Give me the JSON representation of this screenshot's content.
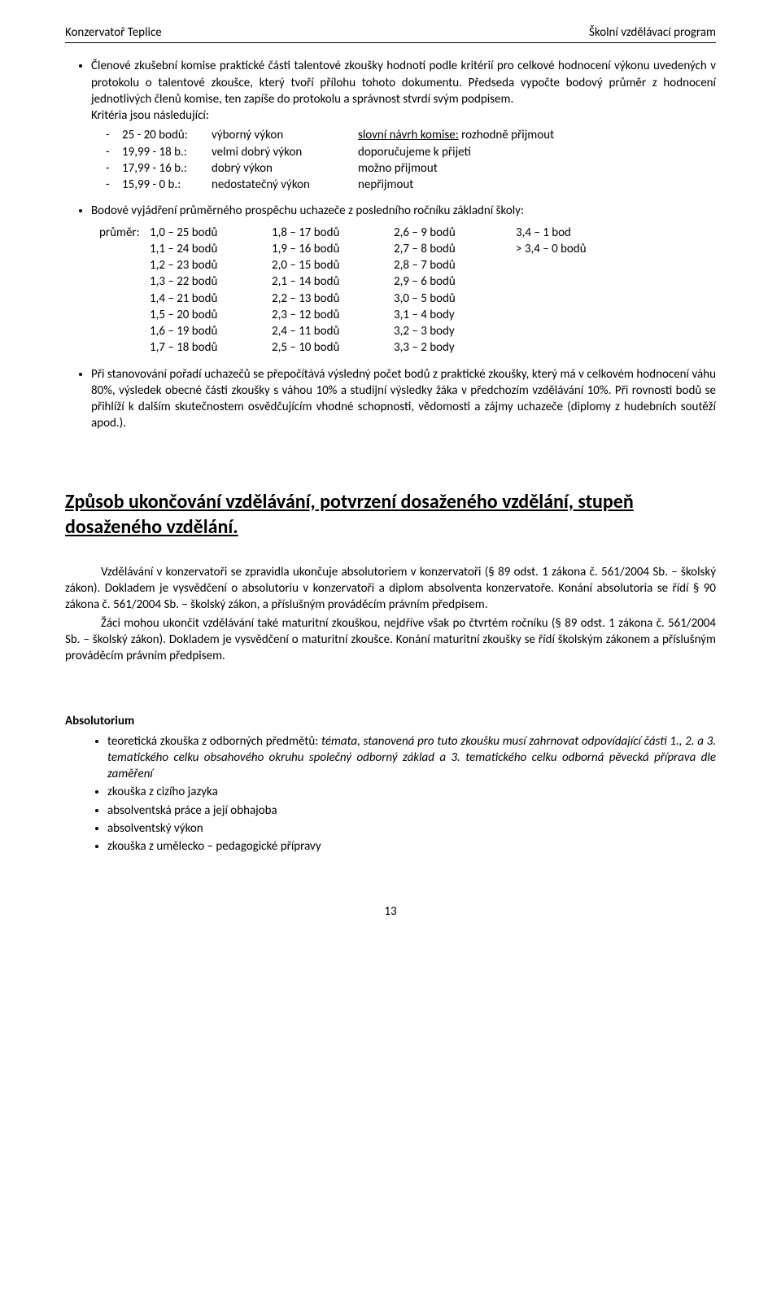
{
  "header": {
    "left": "Konzervatoř Teplice",
    "right": "Školní vzdělávací program"
  },
  "bullets": [
    {
      "text": "Členové zkušební komise praktické části talentové zkoušky hodnotí podle kritérií pro celkové hodnocení výkonu uvedených v protokolu o talentové zkoušce, který tvoří přílohu tohoto dokumentu. Předseda vypočte bodový průměr z hodnocení jednotlivých členů komise, ten zapíše do protokolu a správnost stvrdí svým podpisem.",
      "after": "Kritéria jsou následující:"
    },
    {
      "text": "Bodové vyjádření průměrného prospěchu uchazeče z posledního ročníku základní školy:"
    },
    {
      "text": "Při stanovování pořadí uchazečů se přepočítává výsledný počet bodů z praktické zkoušky, který má v celkovém hodnocení váhu 80%, výsledek obecné části zkoušky s váhou 10% a studijní výsledky žáka v předchozím vzdělávání 10%. Při rovnosti bodů se přihlíží k dalším skutečnostem osvědčujícím vhodné schopnosti, vědomosti a zájmy uchazeče (diplomy z hudebních soutěží apod.)."
    }
  ],
  "criteria": [
    {
      "pts": "25 - 20 bodů:",
      "perf": "výborný výkon",
      "note_u": "slovní návrh komise:",
      "note": " rozhodně přijmout"
    },
    {
      "pts": "19,99 - 18 b.:",
      "perf": "velmi dobrý výkon",
      "note_u": "",
      "note": "doporučujeme k přijetí"
    },
    {
      "pts": "17,99 - 16 b.:",
      "perf": "dobrý výkon",
      "note_u": "",
      "note": "možno přijmout"
    },
    {
      "pts": "15,99 -   0   b.:",
      "perf": "nedostatečný výkon",
      "note_u": "",
      "note": "nepřijmout"
    }
  ],
  "grade_label": "průměr:",
  "grade_cols": [
    [
      "1,0 – 25 bodů",
      "1,1 – 24 bodů",
      "1,2 – 23 bodů",
      "1,3 – 22 bodů",
      "1,4 – 21 bodů",
      "1,5 – 20 bodů",
      "1,6 – 19 bodů",
      "1,7 – 18 bodů"
    ],
    [
      "1,8 – 17 bodů",
      "1,9 – 16 bodů",
      "2,0 – 15 bodů",
      "2,1 – 14 bodů",
      "2,2 – 13 bodů",
      "2,3 – 12 bodů",
      "2,4 – 11 bodů",
      "2,5 – 10 bodů"
    ],
    [
      "2,6 – 9 bodů",
      "2,7 – 8 bodů",
      "2,8 – 7 bodů",
      "2,9 – 6 bodů",
      "3,0 – 5 bodů",
      "3,1 – 4 body",
      "3,2 – 3 body",
      "3,3 – 2 body"
    ],
    [
      "3,4 – 1 bod",
      "> 3,4 – 0 bodů"
    ]
  ],
  "section_title": "Způsob ukončování vzdělávání, potvrzení dosaženého vzdělání, stupeň dosaženého vzdělání.",
  "paras": [
    "Vzdělávání v konzervatoři se zpravidla ukončuje absolutoriem v konzervatoři (§ 89 odst. 1 zákona č. 561/2004 Sb. – školský zákon). Dokladem je vysvědčení o absolutoriu v konzervatoři a diplom absolventa konzervatoře. Konání absolutoria se řídí § 90 zákona č. 561/2004 Sb. – školský zákon, a příslušným prováděcím právním předpisem.",
    "Žáci mohou ukončit vzdělávání také maturitní zkouškou, nejdříve však po čtvrtém ročníku (§ 89 odst. 1 zákona č. 561/2004 Sb. – školský zákon). Dokladem je vysvědčení o maturitní zkoušce. Konání maturitní zkoušky se řídí školským zákonem a příslušným prováděcím právním předpisem."
  ],
  "subheading": "Absolutorium",
  "abs_items": [
    {
      "pre": "teoretická zkouška z odborných předmětů: ",
      "italic": "témata, stanovená pro tuto zkoušku musí zahrnovat odpovídající části 1., 2. a 3. tematického celku obsahového okruhu společný odborný základ a 3. tematického celku odborná pěvecká příprava dle zaměření"
    },
    {
      "pre": "zkouška z cizího jazyka",
      "italic": ""
    },
    {
      "pre": "absolventská práce a její obhajoba",
      "italic": ""
    },
    {
      "pre": "absolventský výkon",
      "italic": ""
    },
    {
      "pre": "zkouška z umělecko – pedagogické přípravy",
      "italic": ""
    }
  ],
  "footer": "13"
}
